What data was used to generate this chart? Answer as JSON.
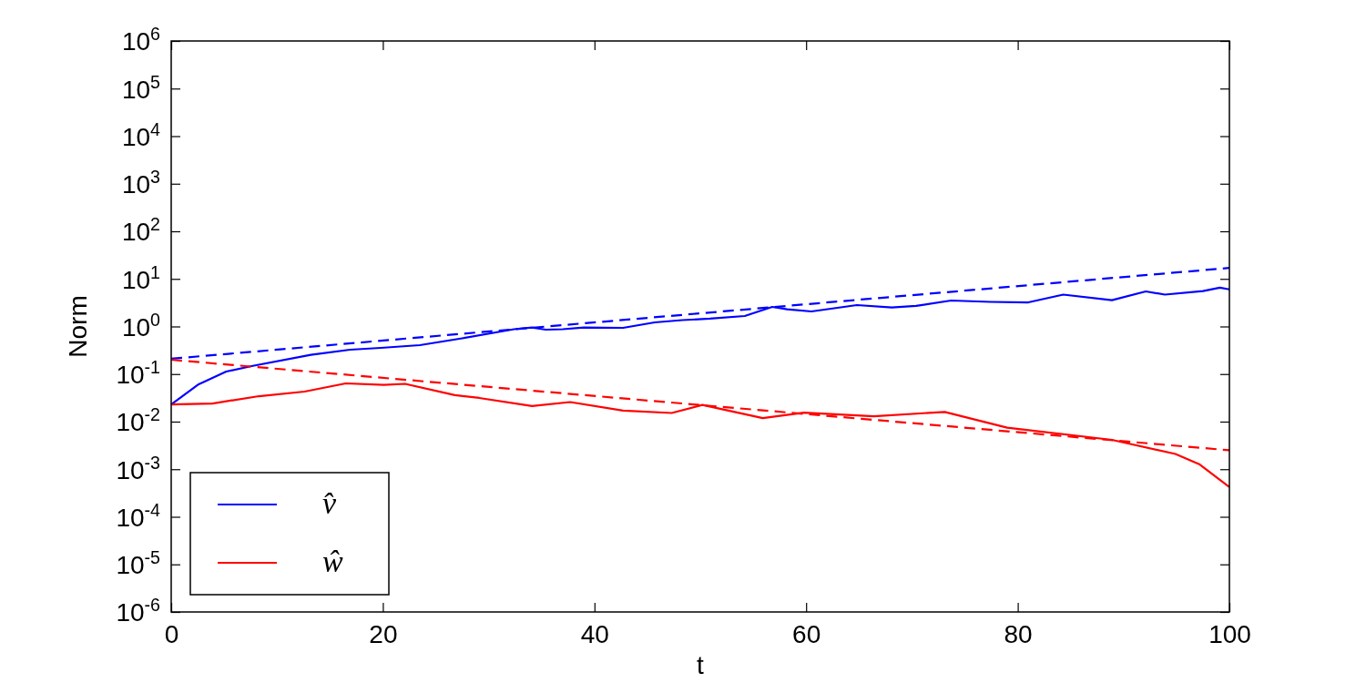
{
  "chart_data": {
    "type": "line",
    "xlabel": "t",
    "ylabel": "Norm",
    "log": "y",
    "legend": "bottom left",
    "marker": "none",
    "xlim": [
      0,
      100
    ],
    "xticks": [
      0,
      20,
      40,
      60,
      80,
      100
    ],
    "ylim": [
      1e-06,
      1000000.0
    ],
    "yticks": [
      {
        "value": 1e-06,
        "label": "10$^{-6}$"
      },
      {
        "value": 1e-05,
        "label": "10$^{-5}$"
      },
      {
        "value": 0.0001,
        "label": "10$^{-4}$"
      },
      {
        "value": 0.001,
        "label": "10$^{-3}$"
      },
      {
        "value": 0.01,
        "label": "10$^{-2}$"
      },
      {
        "value": 0.1,
        "label": "10$^{-1}$"
      },
      {
        "value": 1,
        "label": "10$^{0}$"
      },
      {
        "value": 10,
        "label": "10$^{1}$"
      },
      {
        "value": 100,
        "label": "10$^{2}$"
      },
      {
        "value": 1000,
        "label": "10$^{3}$"
      },
      {
        "value": 10000,
        "label": "10$^{4}$"
      },
      {
        "value": 100000,
        "label": "10$^{5}$"
      },
      {
        "value": 1000000,
        "label": "10$^{6}$"
      }
    ],
    "series": [
      {
        "name": "v̂",
        "color": "#0000ff",
        "line_style": "solid",
        "x": [
          0,
          2.6,
          5.2,
          7.6,
          13.2,
          16.9,
          19.8,
          23.5,
          27.5,
          32.4,
          34.1,
          35.4,
          37.0,
          39.0,
          42.7,
          45.7,
          48.3,
          50.9,
          54.2,
          56.8,
          58.2,
          60.5,
          64.8,
          68.1,
          70.4,
          73.7,
          77.4,
          81.0,
          84.3,
          88.9,
          92.1,
          93.9,
          97.5,
          99.1,
          100
        ],
        "values": [
          0.023,
          0.061,
          0.113,
          0.147,
          0.254,
          0.325,
          0.355,
          0.405,
          0.564,
          0.877,
          0.95,
          0.857,
          0.877,
          0.95,
          0.936,
          1.22,
          1.36,
          1.46,
          1.66,
          2.58,
          2.3,
          2.07,
          2.82,
          2.5,
          2.7,
          3.51,
          3.29,
          3.21,
          4.68,
          3.57,
          5.46,
          4.68,
          5.55,
          6.56,
          6.03
        ]
      },
      {
        "name": "ŵ",
        "color": "#ff0000",
        "line_style": "solid",
        "x": [
          0,
          3.9,
          8.3,
          12.6,
          16.5,
          20.1,
          22.1,
          26.8,
          29.1,
          34.1,
          37.7,
          42.7,
          47.3,
          50.2,
          55.9,
          59.8,
          66.4,
          73.1,
          79.0,
          88.9,
          94.9,
          97.2,
          100
        ],
        "values": [
          0.023,
          0.0241,
          0.0343,
          0.0428,
          0.0637,
          0.059,
          0.0622,
          0.0362,
          0.0315,
          0.0213,
          0.0258,
          0.0171,
          0.0152,
          0.0225,
          0.0119,
          0.0155,
          0.013,
          0.016,
          0.00748,
          0.00414,
          0.00209,
          0.00126,
          0.00042
        ]
      },
      {
        "color": "#0000ff",
        "line_style": "dashed",
        "x": [
          0,
          100
        ],
        "values": [
          0.21,
          17
        ]
      },
      {
        "color": "#ff0000",
        "line_style": "dashed",
        "x": [
          0,
          100
        ],
        "values": [
          0.2,
          0.0025
        ]
      }
    ]
  }
}
